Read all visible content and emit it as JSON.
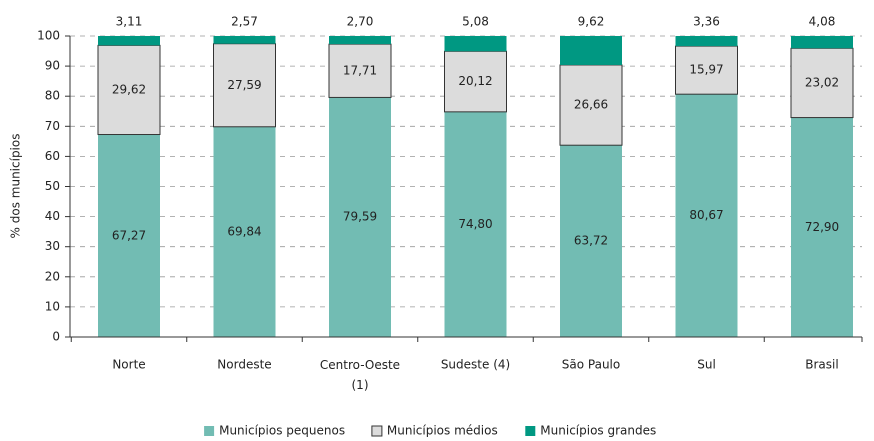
{
  "chart_data": {
    "type": "stacked_bar",
    "ylabel": "% dos municípios",
    "categories": [
      "Norte",
      "Nordeste",
      "Centro-Oeste (1)",
      "Sudeste (4)",
      "São Paulo",
      "Sul",
      "Brasil"
    ],
    "series": [
      {
        "name": "Municípios pequenos",
        "color": "#72bcb3",
        "values": [
          67.27,
          69.84,
          79.59,
          74.8,
          63.72,
          80.67,
          72.9
        ],
        "value_labels": [
          "67,27",
          "69,84",
          "79,59",
          "74,80",
          "63,72",
          "80,67",
          "72,90"
        ]
      },
      {
        "name": "Municípios médios",
        "color": "#dcdcdc",
        "values": [
          29.62,
          27.59,
          17.71,
          20.12,
          26.66,
          15.97,
          23.02
        ],
        "value_labels": [
          "29,62",
          "27,59",
          "17,71",
          "20,12",
          "26,66",
          "15,97",
          "23,02"
        ]
      },
      {
        "name": "Municípios grandes",
        "color": "#009882",
        "values": [
          3.11,
          2.57,
          2.7,
          5.08,
          9.62,
          3.36,
          4.08
        ],
        "value_labels": [
          "3,11",
          "2,57",
          "2,70",
          "5,08",
          "9,62",
          "3,36",
          "4,08"
        ]
      }
    ],
    "ylim": [
      0,
      100
    ],
    "yticks": [
      0,
      10,
      20,
      30,
      40,
      50,
      60,
      70,
      80,
      90,
      100
    ],
    "grid": true,
    "legend": "bottom"
  }
}
